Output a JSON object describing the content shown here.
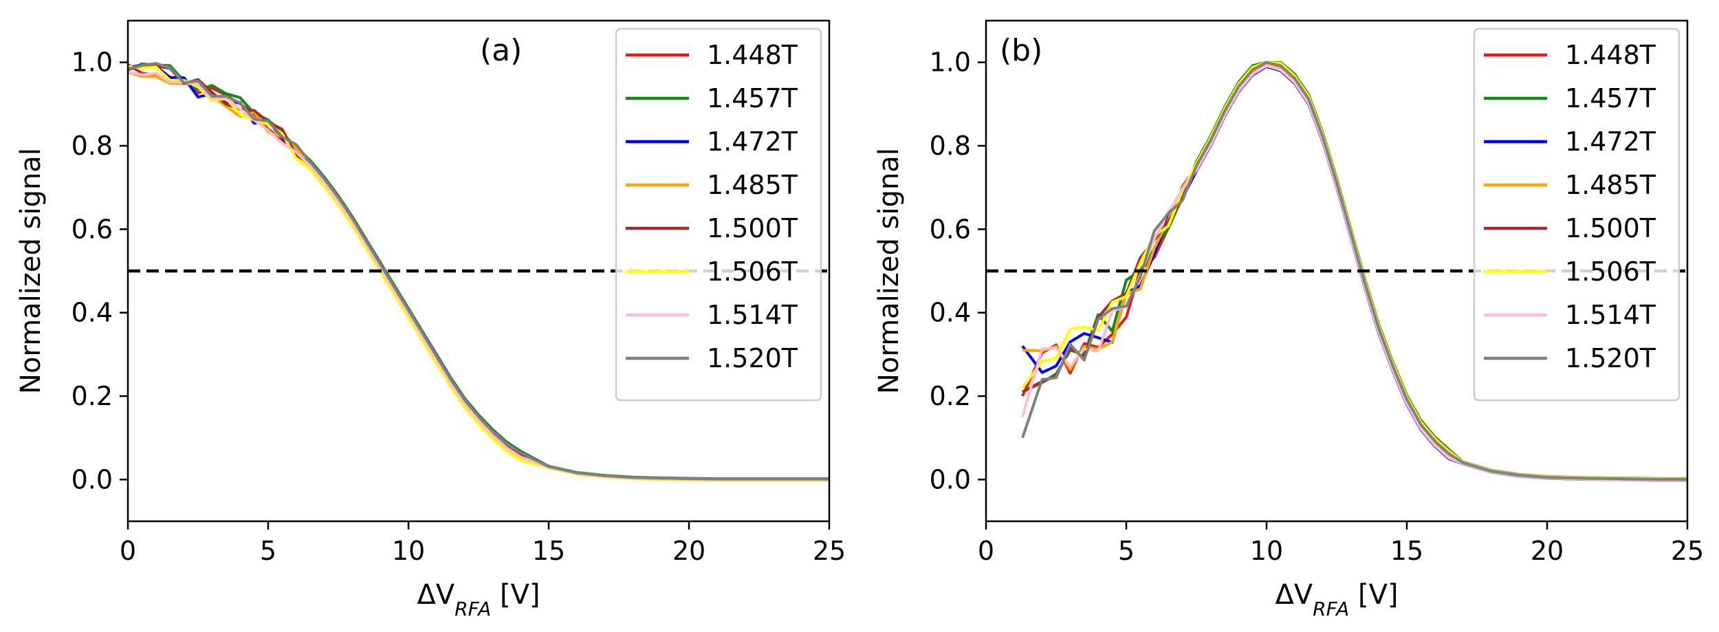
{
  "series_meta": [
    {
      "name": "1.448T",
      "color": "#e41a1c"
    },
    {
      "name": "1.457T",
      "color": "#138a13"
    },
    {
      "name": "1.472T",
      "color": "#0000ff"
    },
    {
      "name": "1.485T",
      "color": "#ffa500"
    },
    {
      "name": "1.500T",
      "color": "#a52a2a"
    },
    {
      "name": "1.506T",
      "color": "#ffff00"
    },
    {
      "name": "1.514T",
      "color": "#ffc0cb"
    },
    {
      "name": "1.520T",
      "color": "#808080"
    }
  ],
  "chart_data": [
    {
      "type": "line",
      "panel_label": "(a)",
      "xlabel_main": "ΔV",
      "xlabel_sub": "RFA",
      "xlabel_unit": " [V]",
      "ylabel": "Normalized signal",
      "xlim": [
        0,
        25
      ],
      "ylim": [
        -0.1,
        1.1
      ],
      "xticks": [
        0,
        5,
        10,
        15,
        20,
        25
      ],
      "xtick_labels": [
        "0",
        "5",
        "10",
        "15",
        "20",
        "25"
      ],
      "yticks": [
        0.0,
        0.2,
        0.4,
        0.6,
        0.8,
        1.0
      ],
      "ytick_labels": [
        "0.0",
        "0.2",
        "0.4",
        "0.6",
        "0.8",
        "1.0"
      ],
      "reference_line": {
        "y": 0.5,
        "style": "dashed",
        "color": "#000000"
      },
      "legend": "top-right",
      "series": [
        {
          "name": "1.448T",
          "offset": 0.0
        },
        {
          "name": "1.457T",
          "offset": 0.01
        },
        {
          "name": "1.472T",
          "offset": -0.006
        },
        {
          "name": "1.485T",
          "offset": -0.008
        },
        {
          "name": "1.500T",
          "offset": 0.004
        },
        {
          "name": "1.506T",
          "offset": -0.012
        },
        {
          "name": "1.514T",
          "offset": -0.004
        },
        {
          "name": "1.520T",
          "offset": 0.006
        }
      ],
      "base_curve": {
        "x": [
          0,
          0.5,
          1,
          1.5,
          2,
          2.5,
          3,
          3.5,
          4,
          4.5,
          5,
          5.5,
          6,
          6.5,
          7,
          7.5,
          8,
          8.5,
          9,
          9.5,
          10,
          10.5,
          11,
          11.5,
          12,
          12.5,
          13,
          13.5,
          14,
          15,
          16,
          17,
          18,
          19,
          20,
          21,
          22,
          23,
          24,
          25
        ],
        "y": [
          1.0,
          0.99,
          0.985,
          0.97,
          0.955,
          0.94,
          0.925,
          0.91,
          0.895,
          0.875,
          0.855,
          0.825,
          0.79,
          0.755,
          0.715,
          0.67,
          0.62,
          0.565,
          0.51,
          0.455,
          0.4,
          0.345,
          0.29,
          0.235,
          0.185,
          0.145,
          0.11,
          0.08,
          0.058,
          0.03,
          0.015,
          0.008,
          0.004,
          0.002,
          0.001,
          0.0,
          0.0,
          0.0,
          0.0,
          0.0
        ]
      },
      "noise_until_x": 6
    },
    {
      "type": "line",
      "panel_label": "(b)",
      "xlabel_main": "ΔV",
      "xlabel_sub": "RFA",
      "xlabel_unit": " [V]",
      "ylabel": "Normalized signal",
      "xlim": [
        0,
        25
      ],
      "ylim": [
        -0.1,
        1.1
      ],
      "xticks": [
        0,
        5,
        10,
        15,
        20,
        25
      ],
      "xtick_labels": [
        "0",
        "5",
        "10",
        "15",
        "20",
        "25"
      ],
      "yticks": [
        0.0,
        0.2,
        0.4,
        0.6,
        0.8,
        1.0
      ],
      "ytick_labels": [
        "0.0",
        "0.2",
        "0.4",
        "0.6",
        "0.8",
        "1.0"
      ],
      "reference_line": {
        "y": 0.5,
        "style": "dashed",
        "color": "#000000"
      },
      "legend": "top-right",
      "series": [
        {
          "name": "1.448T",
          "offset": 0.0,
          "start_y": 0.2
        },
        {
          "name": "1.457T",
          "offset": 0.012,
          "start_y": 0.21
        },
        {
          "name": "1.472T",
          "offset": -0.01,
          "start_y": 0.32
        },
        {
          "name": "1.485T",
          "offset": -0.004,
          "start_y": 0.31
        },
        {
          "name": "1.500T",
          "offset": 0.006,
          "start_y": 0.21
        },
        {
          "name": "1.506T",
          "offset": 0.008,
          "start_y": 0.22
        },
        {
          "name": "1.514T",
          "offset": -0.008,
          "start_y": 0.15
        },
        {
          "name": "1.520T",
          "offset": 0.002,
          "start_y": 0.1
        }
      ],
      "base_curve": {
        "x": [
          1.3,
          2,
          2.5,
          3,
          3.5,
          4,
          4.5,
          5,
          5.5,
          6,
          6.5,
          7,
          7.5,
          8,
          8.5,
          9,
          9.5,
          10,
          10.5,
          11,
          11.5,
          12,
          12.5,
          13,
          13.5,
          14,
          14.5,
          15,
          15.5,
          16,
          16.5,
          17,
          18,
          19,
          20,
          21,
          22,
          23,
          24,
          25
        ],
        "y": [
          0.22,
          0.28,
          0.29,
          0.3,
          0.31,
          0.34,
          0.38,
          0.43,
          0.5,
          0.56,
          0.62,
          0.68,
          0.75,
          0.81,
          0.88,
          0.94,
          0.98,
          1.0,
          0.99,
          0.96,
          0.91,
          0.82,
          0.71,
          0.59,
          0.47,
          0.36,
          0.27,
          0.19,
          0.13,
          0.09,
          0.06,
          0.04,
          0.02,
          0.01,
          0.005,
          0.003,
          0.002,
          0.001,
          0.0,
          0.0
        ]
      },
      "noise_until_x": 7
    }
  ]
}
